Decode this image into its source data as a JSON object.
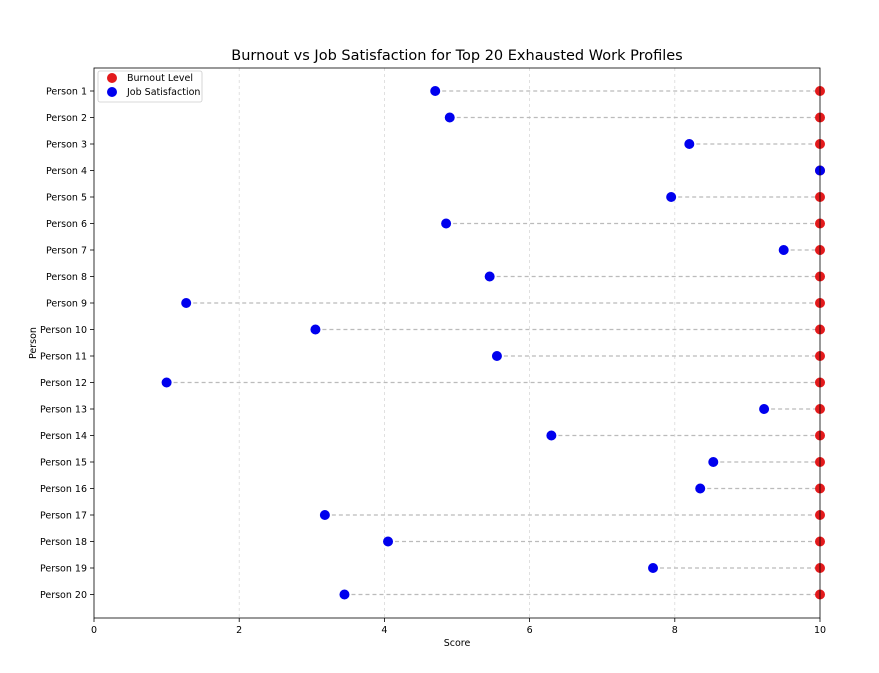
{
  "chart_data": {
    "type": "scatter",
    "title": "Burnout vs Job Satisfaction for Top 20 Exhausted Work Profiles",
    "xlabel": "Score",
    "ylabel": "Person",
    "xlim": [
      0,
      10
    ],
    "xticks": [
      "0",
      "2",
      "4",
      "6",
      "8",
      "10"
    ],
    "grid": "vertical dashed",
    "legend_position": "top-left",
    "categories": [
      "Person 1",
      "Person 2",
      "Person 3",
      "Person 4",
      "Person 5",
      "Person 6",
      "Person 7",
      "Person 8",
      "Person 9",
      "Person 10",
      "Person 11",
      "Person 12",
      "Person 13",
      "Person 14",
      "Person 15",
      "Person 16",
      "Person 17",
      "Person 18",
      "Person 19",
      "Person 20"
    ],
    "series": [
      {
        "name": "Burnout Level",
        "color": "#e31a1c",
        "values": [
          10,
          10,
          10,
          10,
          10,
          10,
          10,
          10,
          10,
          10,
          10,
          10,
          10,
          10,
          10,
          10,
          10,
          10,
          10,
          10
        ]
      },
      {
        "name": "Job Satisfaction",
        "color": "#0000ee",
        "values": [
          4.7,
          4.9,
          8.2,
          10,
          7.95,
          4.85,
          9.5,
          5.45,
          1.27,
          3.05,
          5.55,
          1.0,
          9.23,
          6.3,
          8.53,
          8.35,
          3.18,
          4.05,
          7.7,
          3.45
        ]
      }
    ],
    "connector_color": "#bbbbbb"
  }
}
